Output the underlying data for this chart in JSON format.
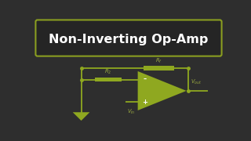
{
  "bg_color": "#2e2e2e",
  "title_box_bg": "#252525",
  "title_border_color": "#8a9e20",
  "title_text": "Non-Inverting Op-Amp",
  "title_text_color": "#ffffff",
  "circuit_color": "#8fa820",
  "label_color": "#9aaa40",
  "title_fontsize": 11.5,
  "label_fontsize": 4.8,
  "lw": 1.3
}
